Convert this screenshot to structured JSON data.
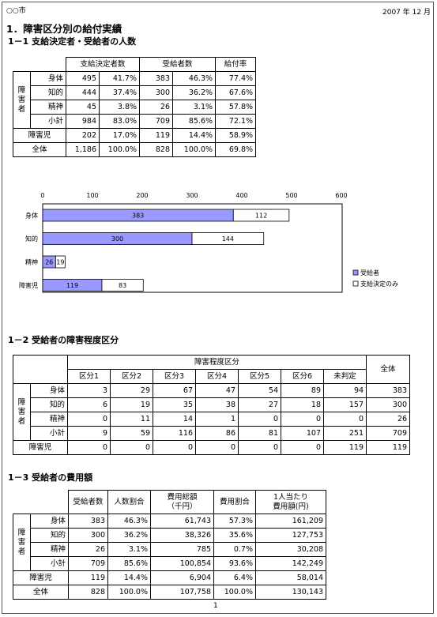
{
  "header": {
    "city": "○○市",
    "date": "2007 年 12 月",
    "page": "1"
  },
  "s1": {
    "title": "1．障害区分別の給付実績"
  },
  "s11": {
    "title": "1－1 支給決定者・受給者の人数",
    "cols": [
      "支給決定者数",
      "受給者数",
      "給付率"
    ],
    "group": [
      "障",
      "害",
      "者"
    ],
    "rows": [
      {
        "label": "身体",
        "a": "495",
        "ap": "41.7%",
        "b": "383",
        "bp": "46.3%",
        "r": "77.4%"
      },
      {
        "label": "知的",
        "a": "444",
        "ap": "37.4%",
        "b": "300",
        "bp": "36.2%",
        "r": "67.6%"
      },
      {
        "label": "精神",
        "a": "45",
        "ap": "3.8%",
        "b": "26",
        "bp": "3.1%",
        "r": "57.8%"
      },
      {
        "label": "小計",
        "a": "984",
        "ap": "83.0%",
        "b": "709",
        "bp": "85.6%",
        "r": "72.1%"
      },
      {
        "label": "障害児",
        "a": "202",
        "ap": "17.0%",
        "b": "119",
        "bp": "14.4%",
        "r": "58.9%"
      },
      {
        "label": "全体",
        "a": "1,186",
        "ap": "100.0%",
        "b": "828",
        "bp": "100.0%",
        "r": "69.8%"
      }
    ]
  },
  "chart_data": {
    "type": "bar",
    "orientation": "horizontal",
    "stacked": true,
    "categories": [
      "身体",
      "知的",
      "精神",
      "障害児"
    ],
    "series": [
      {
        "name": "受給者",
        "values": [
          383,
          300,
          26,
          119
        ],
        "color": "#9999ff"
      },
      {
        "name": "支給決定のみ",
        "values": [
          112,
          144,
          19,
          83
        ],
        "color": "#ffffff"
      }
    ],
    "xlim": [
      0,
      600
    ],
    "ticks": [
      "0",
      "100",
      "200",
      "300",
      "400",
      "500",
      "600"
    ],
    "legend": "right"
  },
  "s12": {
    "title": "1－2 受給者の障害程度区分",
    "group_header": "障害程度区分",
    "total_header": "全体",
    "cols": [
      "区分1",
      "区分2",
      "区分3",
      "区分4",
      "区分5",
      "区分6",
      "未判定"
    ],
    "group": [
      "障",
      "害",
      "者"
    ],
    "rows": [
      {
        "label": "身体",
        "v": [
          "3",
          "29",
          "67",
          "47",
          "54",
          "89",
          "94"
        ],
        "t": "383"
      },
      {
        "label": "知的",
        "v": [
          "6",
          "19",
          "35",
          "38",
          "27",
          "18",
          "157"
        ],
        "t": "300"
      },
      {
        "label": "精神",
        "v": [
          "0",
          "11",
          "14",
          "1",
          "0",
          "0",
          "0"
        ],
        "t": "26"
      },
      {
        "label": "小計",
        "v": [
          "9",
          "59",
          "116",
          "86",
          "81",
          "107",
          "251"
        ],
        "t": "709"
      },
      {
        "label": "障害児",
        "v": [
          "0",
          "0",
          "0",
          "0",
          "0",
          "0",
          "119"
        ],
        "t": "119"
      }
    ]
  },
  "s13": {
    "title": "1－3 受給者の費用額",
    "cols": [
      "受給者数",
      "人数割合",
      "費用総額",
      "（千円）",
      "費用割合",
      "1人当たり",
      "費用額(円)"
    ],
    "group": [
      "障",
      "害",
      "者"
    ],
    "rows": [
      {
        "label": "身体",
        "v": [
          "383",
          "46.3%",
          "61,743",
          "57.3%",
          "161,209"
        ]
      },
      {
        "label": "知的",
        "v": [
          "300",
          "36.2%",
          "38,326",
          "35.6%",
          "127,753"
        ]
      },
      {
        "label": "精神",
        "v": [
          "26",
          "3.1%",
          "785",
          "0.7%",
          "30,208"
        ]
      },
      {
        "label": "小計",
        "v": [
          "709",
          "85.6%",
          "100,854",
          "93.6%",
          "142,249"
        ]
      },
      {
        "label": "障害児",
        "v": [
          "119",
          "14.4%",
          "6,904",
          "6.4%",
          "58,014"
        ]
      },
      {
        "label": "全体",
        "v": [
          "828",
          "100.0%",
          "107,758",
          "100.0%",
          "130,143"
        ]
      }
    ]
  }
}
